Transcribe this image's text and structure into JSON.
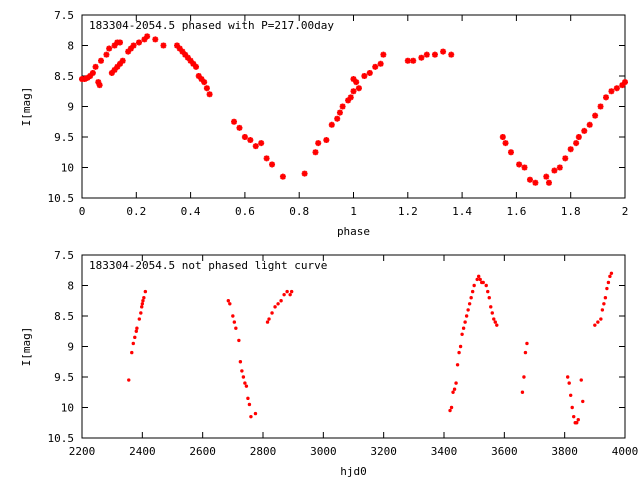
{
  "chart_data": [
    {
      "type": "scatter",
      "title": "183304-2054.5 phased with P=217.00day",
      "xlabel": "phase",
      "ylabel": "I[mag]",
      "xlim": [
        0,
        2
      ],
      "ylim": [
        7.5,
        10.5
      ],
      "y_inverted": true,
      "grid": false,
      "color": "#ff0000",
      "marker": "star",
      "x_ticks": [
        0,
        0.2,
        0.4,
        0.6,
        0.8,
        1,
        1.2,
        1.4,
        1.6,
        1.8,
        2
      ],
      "x_tick_labels": [
        "0",
        "0.2",
        "0.4",
        "0.6",
        "0.8",
        "1",
        "1.2",
        "1.4",
        "1.6",
        "1.8",
        "2"
      ],
      "y_ticks": [
        7.5,
        8,
        8.5,
        9,
        9.5,
        10,
        10.5
      ],
      "y_tick_labels": [
        "7.5",
        "8",
        "8.5",
        "9",
        "9.5",
        "10",
        "10.5"
      ],
      "points": [
        [
          0.0,
          8.55
        ],
        [
          0.01,
          8.55
        ],
        [
          0.02,
          8.53
        ],
        [
          0.03,
          8.5
        ],
        [
          0.04,
          8.45
        ],
        [
          0.05,
          8.35
        ],
        [
          0.06,
          8.6
        ],
        [
          0.065,
          8.65
        ],
        [
          0.07,
          8.25
        ],
        [
          0.09,
          8.15
        ],
        [
          0.1,
          8.05
        ],
        [
          0.11,
          8.45
        ],
        [
          0.12,
          8.4
        ],
        [
          0.13,
          8.35
        ],
        [
          0.14,
          8.3
        ],
        [
          0.15,
          8.25
        ],
        [
          0.17,
          8.1
        ],
        [
          0.18,
          8.05
        ],
        [
          0.19,
          8.0
        ],
        [
          0.21,
          7.95
        ],
        [
          0.23,
          7.9
        ],
        [
          0.24,
          7.85
        ],
        [
          0.12,
          8.0
        ],
        [
          0.13,
          7.95
        ],
        [
          0.14,
          7.95
        ],
        [
          0.27,
          7.9
        ],
        [
          0.3,
          8.0
        ],
        [
          0.35,
          8.0
        ],
        [
          0.36,
          8.05
        ],
        [
          0.37,
          8.1
        ],
        [
          0.38,
          8.15
        ],
        [
          0.39,
          8.2
        ],
        [
          0.4,
          8.25
        ],
        [
          0.41,
          8.3
        ],
        [
          0.42,
          8.35
        ],
        [
          0.43,
          8.5
        ],
        [
          0.44,
          8.55
        ],
        [
          0.45,
          8.6
        ],
        [
          0.46,
          8.7
        ],
        [
          0.47,
          8.8
        ],
        [
          0.56,
          9.25
        ],
        [
          0.58,
          9.35
        ],
        [
          0.6,
          9.5
        ],
        [
          0.62,
          9.55
        ],
        [
          0.64,
          9.65
        ],
        [
          0.66,
          9.6
        ],
        [
          0.68,
          9.85
        ],
        [
          0.7,
          9.95
        ],
        [
          0.74,
          10.15
        ],
        [
          0.82,
          10.1
        ],
        [
          0.86,
          9.75
        ],
        [
          0.87,
          9.6
        ],
        [
          0.9,
          9.55
        ],
        [
          0.92,
          9.3
        ],
        [
          0.94,
          9.2
        ],
        [
          0.95,
          9.1
        ],
        [
          0.96,
          9.0
        ],
        [
          0.98,
          8.9
        ],
        [
          0.99,
          8.85
        ],
        [
          1.0,
          8.75
        ],
        [
          1.0,
          8.55
        ],
        [
          1.01,
          8.6
        ],
        [
          1.02,
          8.7
        ],
        [
          1.04,
          8.5
        ],
        [
          1.06,
          8.45
        ],
        [
          1.08,
          8.35
        ],
        [
          1.1,
          8.3
        ],
        [
          1.11,
          8.15
        ],
        [
          1.2,
          8.25
        ],
        [
          1.22,
          8.25
        ],
        [
          1.25,
          8.2
        ],
        [
          1.27,
          8.15
        ],
        [
          1.3,
          8.15
        ],
        [
          1.33,
          8.1
        ],
        [
          1.36,
          8.15
        ],
        [
          1.55,
          9.5
        ],
        [
          1.56,
          9.6
        ],
        [
          1.58,
          9.75
        ],
        [
          1.61,
          9.95
        ],
        [
          1.63,
          10.0
        ],
        [
          1.65,
          10.2
        ],
        [
          1.67,
          10.25
        ],
        [
          1.71,
          10.15
        ],
        [
          1.72,
          10.25
        ],
        [
          1.74,
          10.05
        ],
        [
          1.76,
          10.0
        ],
        [
          1.78,
          9.85
        ],
        [
          1.8,
          9.7
        ],
        [
          1.82,
          9.6
        ],
        [
          1.83,
          9.5
        ],
        [
          1.85,
          9.4
        ],
        [
          1.87,
          9.3
        ],
        [
          1.89,
          9.15
        ],
        [
          1.91,
          9.0
        ],
        [
          1.93,
          8.85
        ],
        [
          1.95,
          8.75
        ],
        [
          1.97,
          8.7
        ],
        [
          1.99,
          8.65
        ],
        [
          2.0,
          8.6
        ]
      ]
    },
    {
      "type": "scatter",
      "title": "183304-2054.5 not phased light curve",
      "xlabel": "hjd0",
      "ylabel": "I[mag]",
      "xlim": [
        2200,
        4000
      ],
      "ylim": [
        7.5,
        10.5
      ],
      "y_inverted": true,
      "grid": false,
      "color": "#ff0000",
      "marker": "dot",
      "x_ticks": [
        2200,
        2400,
        2600,
        2800,
        3000,
        3200,
        3400,
        3600,
        3800,
        4000
      ],
      "x_tick_labels": [
        "2200",
        "2400",
        "2600",
        "2800",
        "3000",
        "3200",
        "3400",
        "3600",
        "3800",
        "4000"
      ],
      "y_ticks": [
        7.5,
        8,
        8.5,
        9,
        9.5,
        10,
        10.5
      ],
      "y_tick_labels": [
        "7.5",
        "8",
        "8.5",
        "9",
        "9.5",
        "10",
        "10.5"
      ],
      "points": [
        [
          2355,
          9.55
        ],
        [
          2365,
          9.1
        ],
        [
          2370,
          8.95
        ],
        [
          2375,
          8.85
        ],
        [
          2380,
          8.75
        ],
        [
          2382,
          8.7
        ],
        [
          2390,
          8.55
        ],
        [
          2395,
          8.45
        ],
        [
          2398,
          8.35
        ],
        [
          2400,
          8.3
        ],
        [
          2402,
          8.25
        ],
        [
          2405,
          8.2
        ],
        [
          2410,
          8.1
        ],
        [
          2685,
          8.25
        ],
        [
          2690,
          8.3
        ],
        [
          2700,
          8.5
        ],
        [
          2705,
          8.6
        ],
        [
          2710,
          8.7
        ],
        [
          2720,
          8.9
        ],
        [
          2725,
          9.25
        ],
        [
          2730,
          9.4
        ],
        [
          2735,
          9.5
        ],
        [
          2740,
          9.6
        ],
        [
          2745,
          9.65
        ],
        [
          2750,
          9.85
        ],
        [
          2755,
          9.95
        ],
        [
          2760,
          10.15
        ],
        [
          2775,
          10.1
        ],
        [
          2815,
          8.6
        ],
        [
          2820,
          8.55
        ],
        [
          2830,
          8.45
        ],
        [
          2840,
          8.35
        ],
        [
          2850,
          8.3
        ],
        [
          2860,
          8.25
        ],
        [
          2870,
          8.15
        ],
        [
          2880,
          8.1
        ],
        [
          2890,
          8.15
        ],
        [
          2895,
          8.1
        ],
        [
          3420,
          10.05
        ],
        [
          3425,
          10.0
        ],
        [
          3430,
          9.75
        ],
        [
          3435,
          9.7
        ],
        [
          3440,
          9.6
        ],
        [
          3445,
          9.3
        ],
        [
          3450,
          9.1
        ],
        [
          3455,
          9.0
        ],
        [
          3460,
          8.8
        ],
        [
          3465,
          8.7
        ],
        [
          3470,
          8.6
        ],
        [
          3475,
          8.5
        ],
        [
          3480,
          8.4
        ],
        [
          3485,
          8.3
        ],
        [
          3490,
          8.2
        ],
        [
          3495,
          8.1
        ],
        [
          3500,
          8.0
        ],
        [
          3510,
          7.9
        ],
        [
          3515,
          7.85
        ],
        [
          3520,
          7.9
        ],
        [
          3525,
          7.95
        ],
        [
          3530,
          7.95
        ],
        [
          3540,
          8.0
        ],
        [
          3545,
          8.1
        ],
        [
          3550,
          8.2
        ],
        [
          3555,
          8.35
        ],
        [
          3560,
          8.45
        ],
        [
          3565,
          8.55
        ],
        [
          3570,
          8.6
        ],
        [
          3575,
          8.65
        ],
        [
          3660,
          9.75
        ],
        [
          3665,
          9.5
        ],
        [
          3670,
          9.1
        ],
        [
          3675,
          8.95
        ],
        [
          3810,
          9.5
        ],
        [
          3815,
          9.6
        ],
        [
          3820,
          9.8
        ],
        [
          3825,
          10.0
        ],
        [
          3830,
          10.15
        ],
        [
          3835,
          10.25
        ],
        [
          3840,
          10.25
        ],
        [
          3845,
          10.2
        ],
        [
          3855,
          9.55
        ],
        [
          3860,
          9.9
        ],
        [
          3900,
          8.65
        ],
        [
          3910,
          8.6
        ],
        [
          3920,
          8.55
        ],
        [
          3925,
          8.4
        ],
        [
          3930,
          8.3
        ],
        [
          3935,
          8.2
        ],
        [
          3940,
          8.05
        ],
        [
          3945,
          7.95
        ],
        [
          3950,
          7.85
        ],
        [
          3955,
          7.8
        ]
      ]
    }
  ]
}
